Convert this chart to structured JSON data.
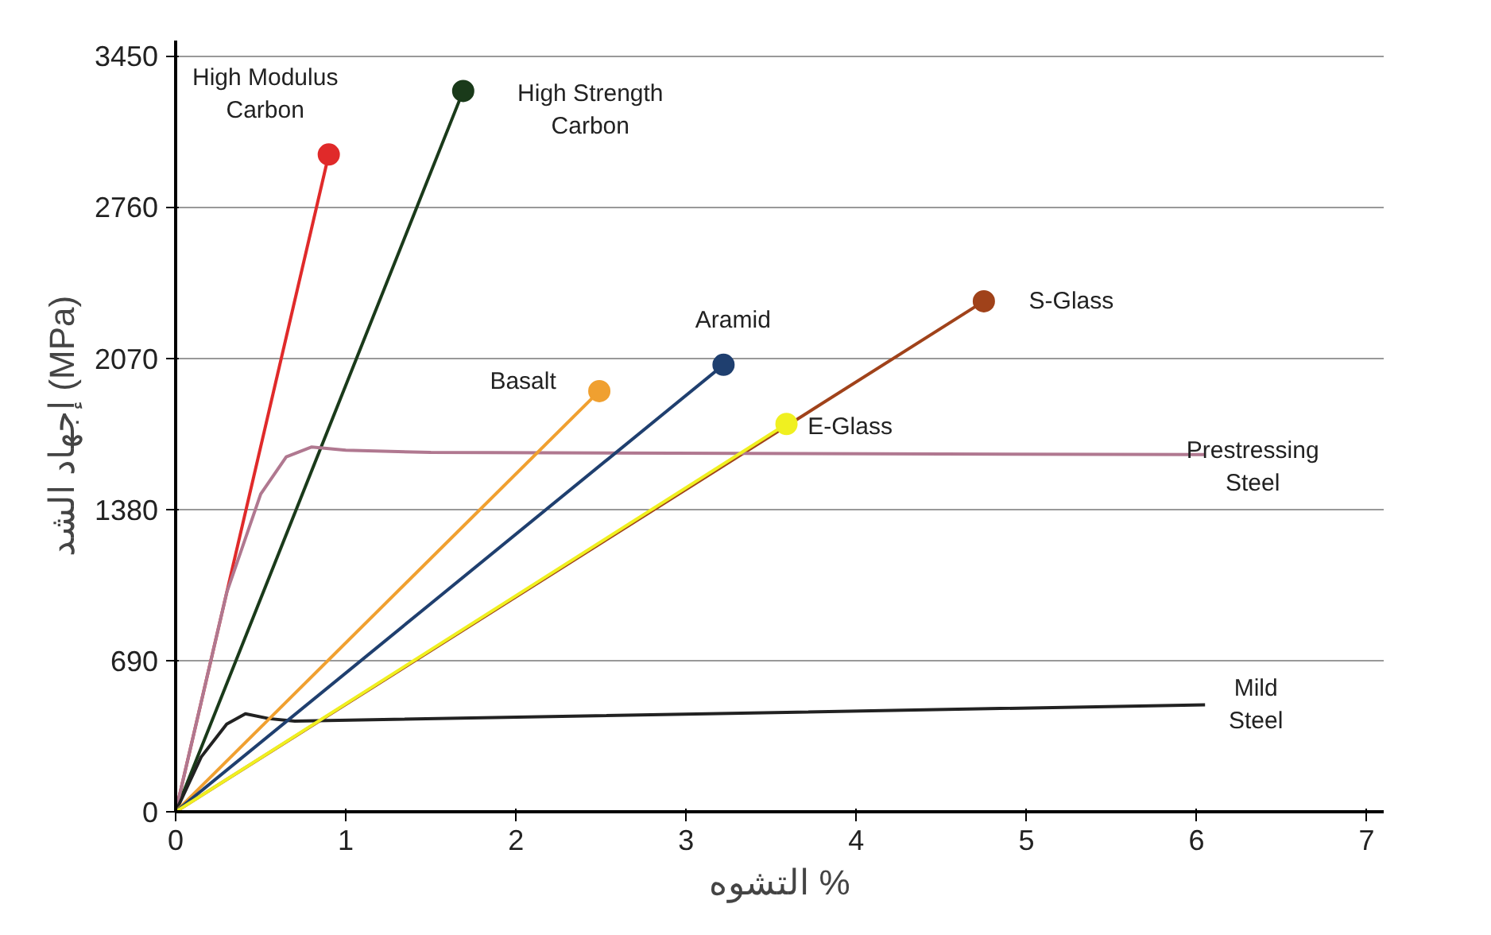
{
  "chart_data": {
    "type": "line",
    "xlabel": "التشوه %",
    "ylabel": "إجهاد الشد (MPa)",
    "xlim": [
      0,
      7.1
    ],
    "xticks": [
      0,
      1,
      2,
      3,
      4,
      5,
      6,
      7
    ],
    "ylim": [
      0,
      3520
    ],
    "yticks": [
      0,
      690,
      1380,
      2070,
      2760,
      3450
    ],
    "grid": "y",
    "series": [
      {
        "name": "S-Glass",
        "color": "#a0421a",
        "x": [
          0,
          4.75
        ],
        "values": [
          0,
          2330
        ],
        "marker": "circle"
      },
      {
        "name": "High Modulus\nCarbon",
        "color": "#e02a2a",
        "x": [
          0,
          0.9
        ],
        "values": [
          0,
          3000
        ],
        "marker": "circle"
      },
      {
        "name": "High Strength\nCarbon",
        "color": "#1a3a1a",
        "x": [
          0,
          1.69
        ],
        "values": [
          0,
          3290
        ],
        "marker": "circle"
      },
      {
        "name": "Prestressing\nSteel",
        "color": "#b07890",
        "x": [
          0,
          0.3,
          0.5,
          0.65,
          0.8,
          1.0,
          1.5,
          6.05
        ],
        "values": [
          0,
          1000,
          1450,
          1620,
          1665,
          1650,
          1640,
          1630
        ],
        "marker": "none"
      },
      {
        "name": "Mild\nSteel",
        "color": "#222222",
        "x": [
          0,
          0.15,
          0.3,
          0.41,
          0.55,
          0.7,
          6.05
        ],
        "values": [
          0,
          250,
          400,
          447,
          425,
          414,
          488
        ],
        "marker": "none"
      },
      {
        "name": "Basalt",
        "color": "#f0a030",
        "x": [
          0,
          2.49
        ],
        "values": [
          0,
          1920
        ],
        "marker": "circle"
      },
      {
        "name": "Aramid",
        "color": "#1f3f6f",
        "x": [
          0,
          3.22
        ],
        "values": [
          0,
          2040
        ],
        "marker": "circle"
      },
      {
        "name": "E-Glass",
        "color": "#f0f020",
        "x": [
          0,
          3.59
        ],
        "values": [
          0,
          1770
        ],
        "marker": "circle"
      }
    ]
  }
}
